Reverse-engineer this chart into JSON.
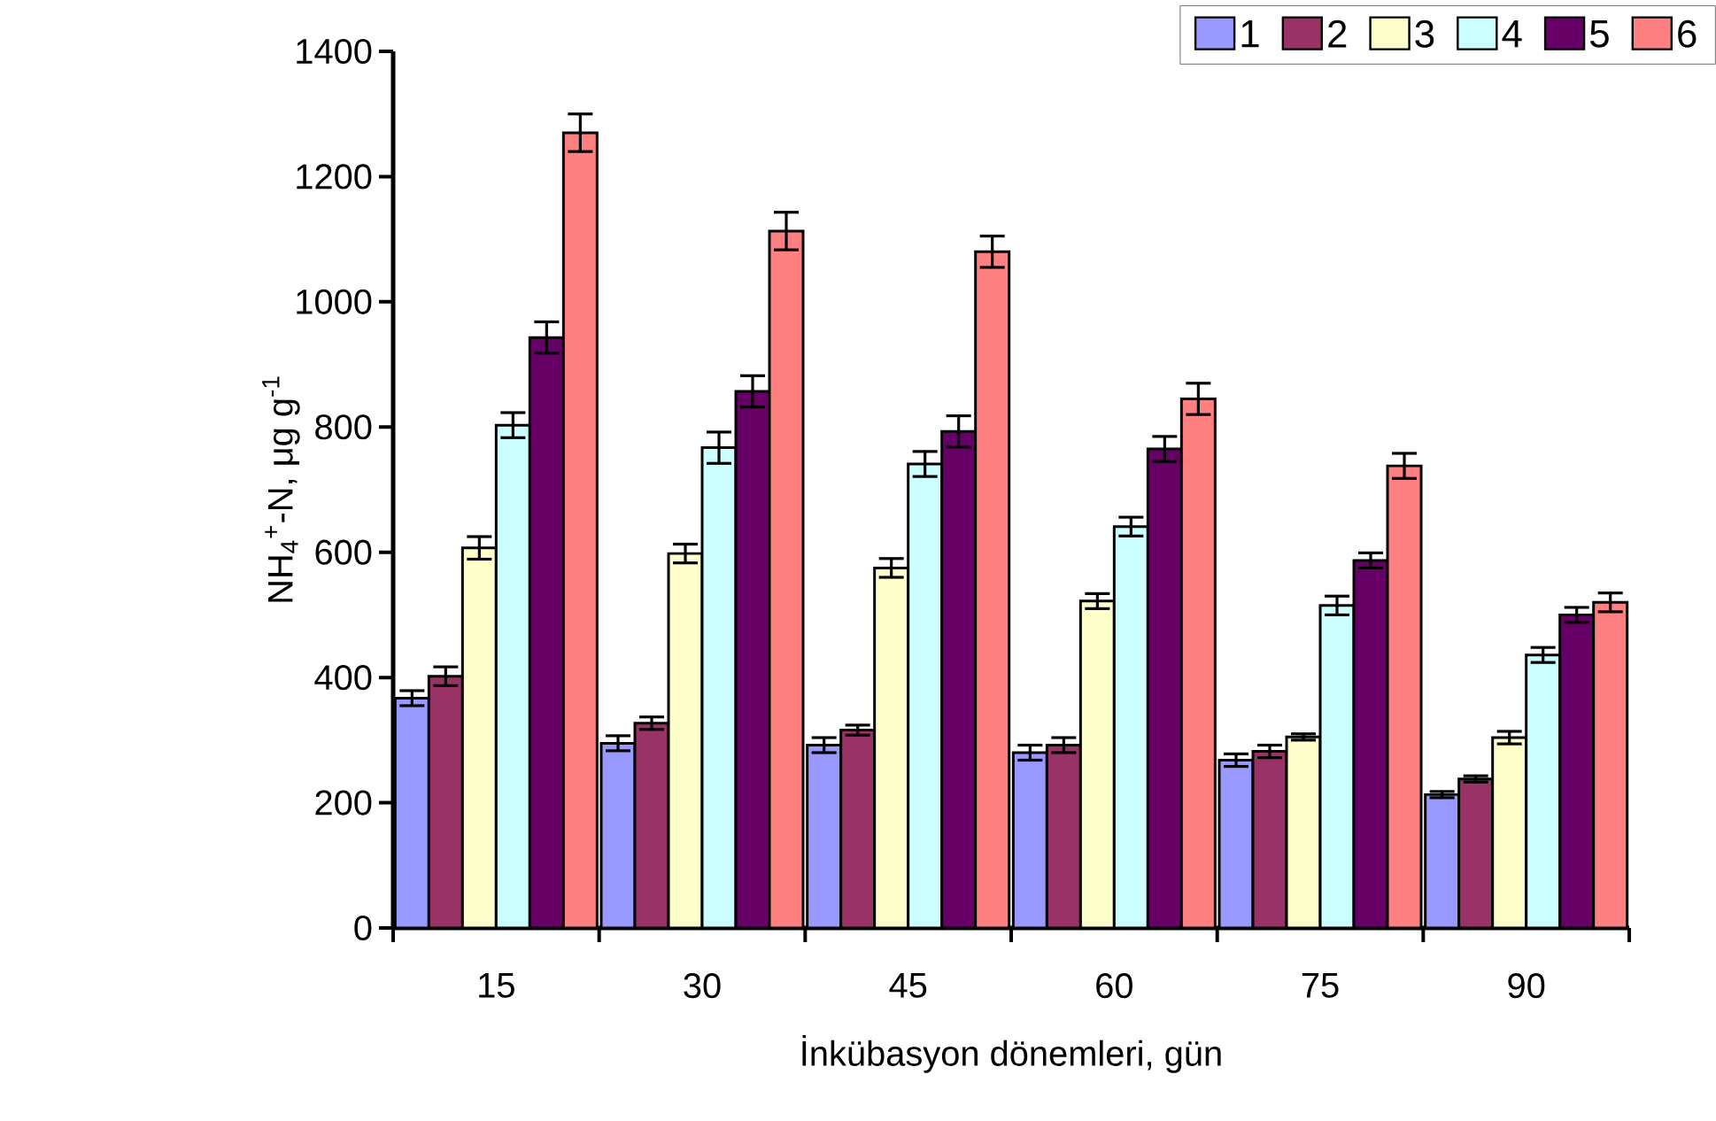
{
  "chart_data": {
    "type": "bar",
    "xlabel": "İnkübasyon dönemleri, gün",
    "ylabel": "NH$_{4}$$^{+}$-N, μg g$^{-1}$",
    "categories": [
      "15",
      "30",
      "45",
      "60",
      "75",
      "90"
    ],
    "series": [
      {
        "name": "1",
        "color": "#9999ff",
        "values": [
          367,
          295,
          292,
          280,
          268,
          213
        ],
        "errors": [
          12,
          12,
          12,
          12,
          10,
          5
        ]
      },
      {
        "name": "2",
        "color": "#993366",
        "values": [
          402,
          327,
          316,
          292,
          282,
          238
        ],
        "errors": [
          15,
          10,
          8,
          12,
          10,
          5
        ]
      },
      {
        "name": "3",
        "color": "#ffffcc",
        "values": [
          607,
          598,
          575,
          522,
          305,
          304
        ],
        "errors": [
          18,
          15,
          15,
          12,
          5,
          10
        ]
      },
      {
        "name": "4",
        "color": "#ccffff",
        "values": [
          803,
          767,
          741,
          641,
          515,
          436
        ],
        "errors": [
          20,
          25,
          20,
          15,
          15,
          12
        ]
      },
      {
        "name": "5",
        "color": "#660066",
        "values": [
          943,
          857,
          793,
          765,
          587,
          500
        ],
        "errors": [
          25,
          25,
          25,
          20,
          12,
          12
        ]
      },
      {
        "name": "6",
        "color": "#ff8080",
        "values": [
          1270,
          1113,
          1080,
          845,
          738,
          520
        ],
        "errors": [
          30,
          30,
          25,
          25,
          20,
          15
        ]
      }
    ],
    "ylim": [
      0,
      1400
    ],
    "yticks": [
      0,
      200,
      400,
      600,
      800,
      1000,
      1200,
      1400
    ],
    "legend": "top right"
  }
}
